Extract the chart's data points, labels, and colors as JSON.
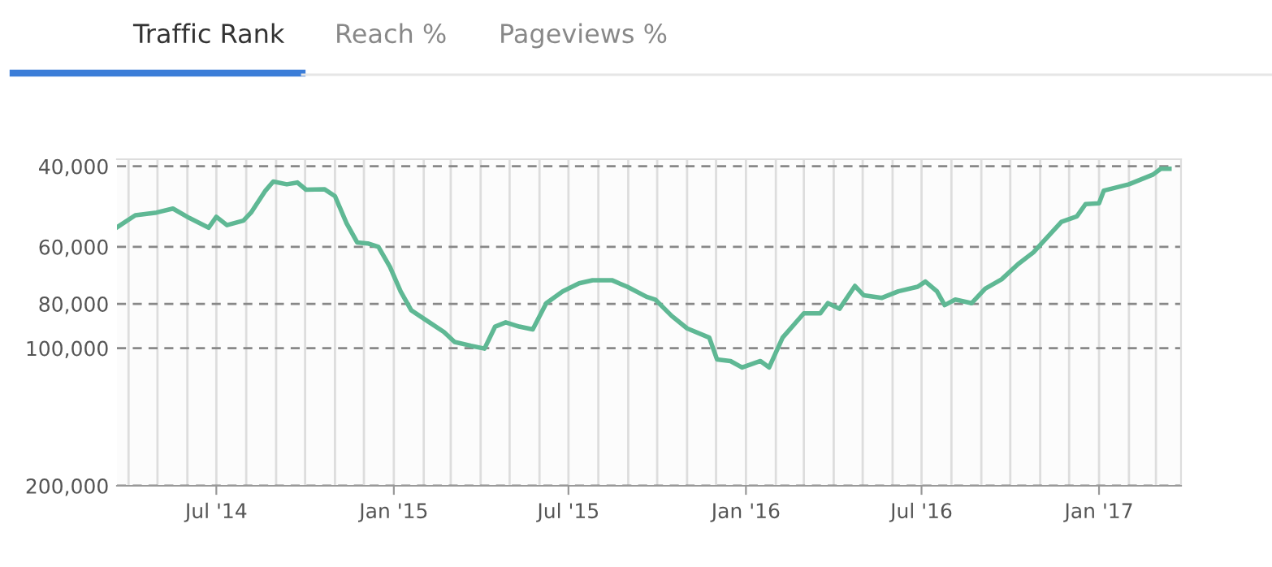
{
  "chart_data": {
    "type": "line",
    "title": "Traffic Rank",
    "annotations": [
      "Reach %",
      "Pageviews %"
    ],
    "x": [
      "2014-03-20",
      "2014-04-08",
      "2014-04-30",
      "2014-05-17",
      "2014-06-03",
      "2014-06-23",
      "2014-07-01",
      "2014-07-12",
      "2014-07-29",
      "2014-08-06",
      "2014-08-21",
      "2014-08-29",
      "2014-09-12",
      "2014-09-23",
      "2014-10-02",
      "2014-10-21",
      "2014-11-01",
      "2014-11-13",
      "2014-11-24",
      "2014-12-05",
      "2014-12-16",
      "2014-12-28",
      "2015-01-08",
      "2015-01-19",
      "2015-02-05",
      "2015-02-22",
      "2015-03-05",
      "2015-03-22",
      "2015-04-05",
      "2015-04-16",
      "2015-04-27",
      "2015-05-11",
      "2015-05-25",
      "2015-06-08",
      "2015-06-25",
      "2015-07-12",
      "2015-07-26",
      "2015-08-15",
      "2015-08-31",
      "2015-09-20",
      "2015-09-29",
      "2015-10-16",
      "2015-11-01",
      "2015-11-24",
      "2015-12-02",
      "2015-12-16",
      "2015-12-28",
      "2016-01-16",
      "2016-01-25",
      "2016-02-08",
      "2016-03-01",
      "2016-03-18",
      "2016-03-26",
      "2016-04-07",
      "2016-04-23",
      "2016-05-02",
      "2016-05-21",
      "2016-06-07",
      "2016-06-27",
      "2016-07-05",
      "2016-07-17",
      "2016-07-25",
      "2016-08-05",
      "2016-08-22",
      "2016-09-05",
      "2016-09-22",
      "2016-10-09",
      "2016-10-25",
      "2016-11-23",
      "2016-12-09",
      "2016-12-18",
      "2017-01-01",
      "2017-01-06",
      "2017-02-01",
      "2017-02-26",
      "2017-03-06",
      "2017-03-15"
    ],
    "series": [
      {
        "color": "#5fb894",
        "values": [
          54400,
          51200,
          50500,
          49500,
          51900,
          54500,
          51600,
          53800,
          52600,
          50500,
          45200,
          43200,
          43800,
          43400,
          45000,
          44900,
          46500,
          53300,
          58700,
          59000,
          60000,
          66400,
          75100,
          82600,
          87300,
          92200,
          96900,
          98800,
          100200,
          89700,
          87800,
          89700,
          91000,
          79700,
          75100,
          72100,
          71000,
          71000,
          73400,
          77200,
          78300,
          85000,
          90500,
          94800,
          105800,
          106700,
          110200,
          106700,
          110200,
          94800,
          83900,
          83900,
          79700,
          82000,
          73100,
          76600,
          77600,
          75100,
          73400,
          71500,
          75100,
          80500,
          78300,
          79700,
          74100,
          70700,
          65500,
          61700,
          52900,
          51500,
          48400,
          48200,
          45200,
          43800,
          41700,
          40500,
          40500
        ]
      }
    ],
    "log": true,
    "ylim": [
      200000,
      38600
    ],
    "yticks": [
      {
        "value": 40000,
        "label": "40,000"
      },
      {
        "value": 60000,
        "label": "60,000"
      },
      {
        "value": 80000,
        "label": "80,000"
      },
      {
        "value": 100000,
        "label": "100,000"
      },
      {
        "value": 200000,
        "label": "200,000"
      }
    ],
    "xlim": [
      "2014-03-20",
      "2017-03-27"
    ],
    "xticks": [
      {
        "value": "2014-04-01",
        "label": null
      },
      {
        "value": "2014-05-01",
        "label": null
      },
      {
        "value": "2014-06-01",
        "label": null
      },
      {
        "value": "2014-07-01",
        "label": "Jul '14"
      },
      {
        "value": "2014-08-01",
        "label": null
      },
      {
        "value": "2014-09-01",
        "label": null
      },
      {
        "value": "2014-10-01",
        "label": null
      },
      {
        "value": "2014-11-01",
        "label": null
      },
      {
        "value": "2014-12-01",
        "label": null
      },
      {
        "value": "2015-01-01",
        "label": "Jan '15"
      },
      {
        "value": "2015-02-01",
        "label": null
      },
      {
        "value": "2015-03-01",
        "label": null
      },
      {
        "value": "2015-04-01",
        "label": null
      },
      {
        "value": "2015-05-01",
        "label": null
      },
      {
        "value": "2015-06-01",
        "label": null
      },
      {
        "value": "2015-07-01",
        "label": "Jul '15"
      },
      {
        "value": "2015-08-01",
        "label": null
      },
      {
        "value": "2015-09-01",
        "label": null
      },
      {
        "value": "2015-10-01",
        "label": null
      },
      {
        "value": "2015-11-01",
        "label": null
      },
      {
        "value": "2015-12-01",
        "label": null
      },
      {
        "value": "2016-01-01",
        "label": "Jan '16"
      },
      {
        "value": "2016-02-01",
        "label": null
      },
      {
        "value": "2016-03-01",
        "label": null
      },
      {
        "value": "2016-04-01",
        "label": null
      },
      {
        "value": "2016-05-01",
        "label": null
      },
      {
        "value": "2016-06-01",
        "label": null
      },
      {
        "value": "2016-07-01",
        "label": "Jul '16"
      },
      {
        "value": "2016-08-01",
        "label": null
      },
      {
        "value": "2016-09-01",
        "label": null
      },
      {
        "value": "2016-10-01",
        "label": null
      },
      {
        "value": "2016-11-01",
        "label": null
      },
      {
        "value": "2016-12-01",
        "label": null
      },
      {
        "value": "2017-01-01",
        "label": "Jan '17"
      },
      {
        "value": "2017-02-01",
        "label": null
      },
      {
        "value": "2017-03-01",
        "label": null
      }
    ],
    "grid": true,
    "marker": "none",
    "line_style": "solid"
  }
}
